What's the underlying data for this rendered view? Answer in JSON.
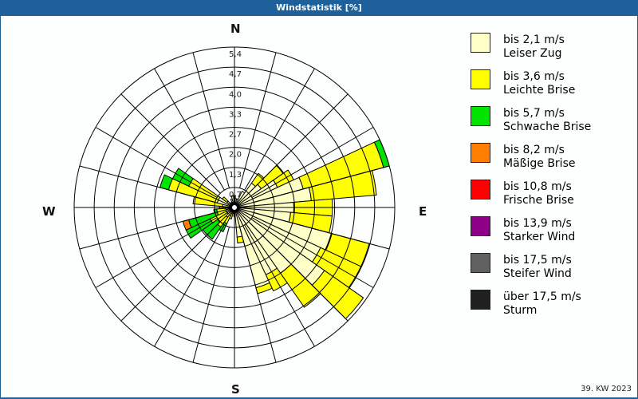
{
  "header": {
    "title": "Windstatistik [%]"
  },
  "footer": {
    "period": "39. KW 2023"
  },
  "directions": {
    "n": "N",
    "e": "E",
    "s": "S",
    "w": "W"
  },
  "legend": [
    {
      "range": "bis 2,1 m/s",
      "name": "Leiser Zug",
      "color": "#ffffc8"
    },
    {
      "range": "bis 3,6 m/s",
      "name": "Leichte Brise",
      "color": "#ffff00"
    },
    {
      "range": "bis 5,7 m/s",
      "name": "Schwache Brise",
      "color": "#00e400"
    },
    {
      "range": "bis 8,2 m/s",
      "name": "Mäßige Brise",
      "color": "#ff7e00"
    },
    {
      "range": "bis 10,8 m/s",
      "name": "Frische Brise",
      "color": "#ff0000"
    },
    {
      "range": "bis 13,9 m/s",
      "name": "Starker Wind",
      "color": "#8f0089"
    },
    {
      "range": "bis 17,5 m/s",
      "name": "Steifer Wind",
      "color": "#606060"
    },
    {
      "range": "über 17,5 m/s",
      "name": "Sturm",
      "color": "#202020"
    }
  ],
  "chart_data": {
    "type": "wind-rose",
    "title": "Windstatistik [%]",
    "subtitle": "39. KW 2023",
    "radial_ticks": [
      "0,7",
      "1,3",
      "2,0",
      "2,7",
      "3,3",
      "4,0",
      "4,7",
      "5,4"
    ],
    "rmax": 5.4,
    "sector_width_deg": 10,
    "series_names": [
      "bis 2,1 m/s",
      "bis 3,6 m/s",
      "bis 5,7 m/s",
      "bis 8,2 m/s",
      "bis 10,8 m/s",
      "bis 13,9 m/s",
      "bis 17,5 m/s",
      "über 17,5 m/s"
    ],
    "sectors": [
      {
        "dir": 0,
        "values": [
          0.4,
          0,
          0,
          0
        ]
      },
      {
        "dir": 10,
        "values": [
          0.3,
          0,
          0,
          0
        ]
      },
      {
        "dir": 20,
        "values": [
          0.3,
          0,
          0,
          0
        ]
      },
      {
        "dir": 30,
        "values": [
          0.6,
          0,
          0,
          0
        ]
      },
      {
        "dir": 40,
        "values": [
          1.0,
          0.4,
          0,
          0
        ]
      },
      {
        "dir": 50,
        "values": [
          1.1,
          0.9,
          0,
          0
        ]
      },
      {
        "dir": 60,
        "values": [
          1.6,
          0.6,
          0,
          0
        ]
      },
      {
        "dir": 70,
        "values": [
          2.4,
          2.8,
          0.2,
          0
        ]
      },
      {
        "dir": 80,
        "values": [
          2.6,
          2.2,
          0,
          0
        ]
      },
      {
        "dir": 90,
        "values": [
          2.0,
          1.3,
          0,
          0
        ]
      },
      {
        "dir": 100,
        "values": [
          1.9,
          1.4,
          0,
          0
        ]
      },
      {
        "dir": 110,
        "values": [
          3.4,
          1.3,
          0,
          0
        ]
      },
      {
        "dir": 120,
        "values": [
          3.2,
          1.5,
          0,
          0
        ]
      },
      {
        "dir": 130,
        "values": [
          3.7,
          1.6,
          0,
          0
        ]
      },
      {
        "dir": 140,
        "values": [
          2.7,
          1.4,
          0,
          0
        ]
      },
      {
        "dir": 150,
        "values": [
          2.5,
          0.6,
          0,
          0
        ]
      },
      {
        "dir": 160,
        "values": [
          2.8,
          0.2,
          0,
          0
        ]
      },
      {
        "dir": 170,
        "values": [
          1.0,
          0.2,
          0,
          0
        ]
      },
      {
        "dir": 180,
        "values": [
          0.3,
          0,
          0,
          0
        ]
      },
      {
        "dir": 190,
        "values": [
          0.2,
          0,
          0,
          0
        ]
      },
      {
        "dir": 200,
        "values": [
          0.2,
          0.2,
          0,
          0
        ]
      },
      {
        "dir": 210,
        "values": [
          0.3,
          0.3,
          0.3,
          0
        ]
      },
      {
        "dir": 220,
        "values": [
          0.4,
          0.4,
          0.5,
          0
        ]
      },
      {
        "dir": 230,
        "values": [
          0.3,
          0.4,
          0.6,
          0
        ]
      },
      {
        "dir": 240,
        "values": [
          0.3,
          0.6,
          0.9,
          0
        ]
      },
      {
        "dir": 250,
        "values": [
          0.3,
          0.3,
          1.0,
          0.2
        ]
      },
      {
        "dir": 260,
        "values": [
          0.3,
          0.3,
          0.1,
          0
        ]
      },
      {
        "dir": 270,
        "values": [
          0.3,
          0.2,
          0,
          0
        ]
      },
      {
        "dir": 280,
        "values": [
          0.4,
          1.0,
          0,
          0
        ]
      },
      {
        "dir": 290,
        "values": [
          0.6,
          1.7,
          0.3,
          0
        ]
      },
      {
        "dir": 300,
        "values": [
          0.6,
          1.1,
          0.6,
          0
        ]
      },
      {
        "dir": 310,
        "values": [
          0.3,
          0.2,
          0,
          0
        ]
      },
      {
        "dir": 320,
        "values": [
          0.2,
          0,
          0,
          0
        ]
      },
      {
        "dir": 330,
        "values": [
          0.2,
          0,
          0,
          0
        ]
      },
      {
        "dir": 340,
        "values": [
          0.3,
          0,
          0,
          0
        ]
      },
      {
        "dir": 350,
        "values": [
          0.4,
          0,
          0,
          0
        ]
      }
    ]
  }
}
